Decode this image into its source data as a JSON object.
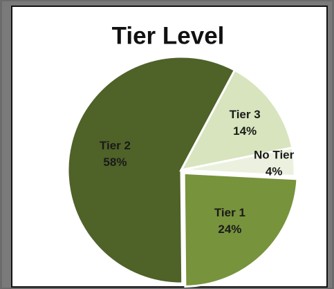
{
  "chart_data": {
    "type": "pie",
    "title": "Tier Level",
    "categories": [
      "Tier 1",
      "Tier 2",
      "Tier 3",
      "No Tier"
    ],
    "values": [
      24,
      58,
      14,
      4
    ],
    "value_labels": [
      "24%",
      "58%",
      "14%",
      "4%"
    ],
    "colors": [
      "#77933c",
      "#4f6228",
      "#d7e4bd",
      "#ebf1de"
    ]
  }
}
